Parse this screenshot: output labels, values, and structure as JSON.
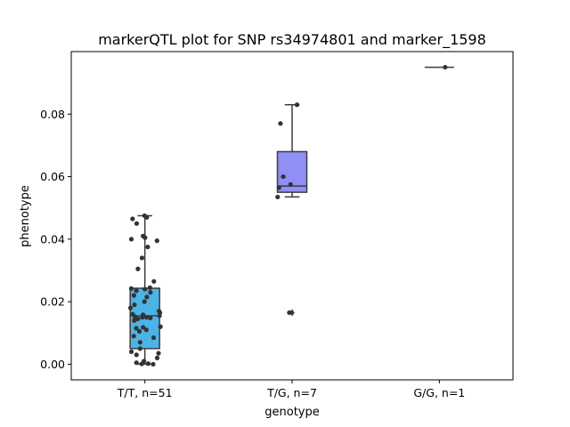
{
  "chart_data": {
    "type": "box",
    "title": "markerQTL plot for SNP rs34974801 and marker_1598",
    "xlabel": "genotype",
    "ylabel": "phenotype",
    "ylim": [
      -0.005,
      0.1
    ],
    "yticks": [
      "0.00",
      "0.02",
      "0.04",
      "0.06",
      "0.08"
    ],
    "categories": [
      "T/T, n=51",
      "T/G, n=7",
      "G/G, n=1"
    ],
    "colors": [
      "#4db3e6",
      "#8f8ff5",
      "#e46bd6"
    ],
    "boxes": [
      {
        "category": "T/T, n=51",
        "whisker_low": 0.0,
        "q1": 0.005,
        "median": 0.0155,
        "q3": 0.0243,
        "whisker_high": 0.0475,
        "outliers": []
      },
      {
        "category": "T/G, n=7",
        "whisker_low": 0.0535,
        "q1": 0.055,
        "median": 0.057,
        "q3": 0.068,
        "whisker_high": 0.083,
        "outliers": [
          0.0165
        ]
      },
      {
        "category": "G/G, n=1",
        "whisker_low": 0.095,
        "q1": 0.095,
        "median": 0.095,
        "q3": 0.095,
        "whisker_high": 0.095,
        "outliers": []
      }
    ],
    "points": [
      {
        "g": 0,
        "v": [
          0.0475,
          0.047,
          0.0465,
          0.045,
          0.041,
          0.0405,
          0.04,
          0.0395,
          0.0375,
          0.034,
          0.0305,
          0.0265,
          0.0245,
          0.0242,
          0.024,
          0.0235,
          0.023,
          0.022,
          0.0215,
          0.02,
          0.019,
          0.018,
          0.017,
          0.0165,
          0.016,
          0.0158,
          0.0155,
          0.0152,
          0.015,
          0.015,
          0.0148,
          0.0145,
          0.014,
          0.012,
          0.0118,
          0.0115,
          0.011,
          0.0105,
          0.009,
          0.0085,
          0.007,
          0.005,
          0.004,
          0.0035,
          0.003,
          0.002,
          0.001,
          0.0005,
          0.0002,
          0.0001,
          0.0
        ]
      },
      {
        "g": 1,
        "v": [
          0.083,
          0.077,
          0.06,
          0.0575,
          0.0565,
          0.0535,
          0.0165
        ]
      },
      {
        "g": 2,
        "v": [
          0.095
        ]
      }
    ]
  }
}
